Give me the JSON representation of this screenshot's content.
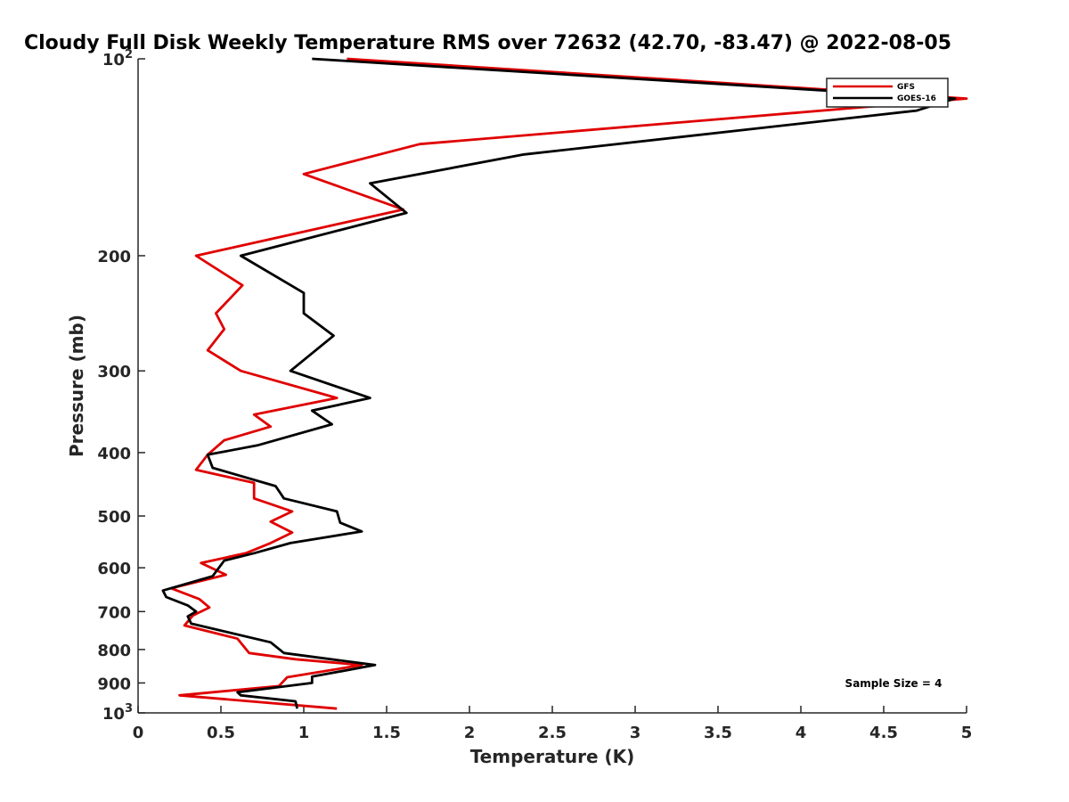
{
  "chart_data": {
    "type": "line",
    "title": "Cloudy Full Disk Weekly Temperature RMS over 72632 (42.70, -83.47) @ 2022-08-05",
    "xlabel": "Temperature (K)",
    "ylabel": "Pressure (mb)",
    "xlim": [
      0,
      5
    ],
    "ylim": [
      100,
      1000
    ],
    "yscale": "log",
    "y_reversed": true,
    "grid": false,
    "legend_position": "top-right",
    "x_ticks": [
      0,
      0.5,
      1,
      1.5,
      2,
      2.5,
      3,
      3.5,
      4,
      4.5,
      5
    ],
    "x_tick_labels": [
      "0",
      "0.5",
      "1",
      "1.5",
      "2",
      "2.5",
      "3",
      "3.5",
      "4",
      "4.5",
      "5"
    ],
    "y_ticks": [
      100,
      200,
      300,
      400,
      500,
      600,
      700,
      800,
      900,
      1000
    ],
    "y_tick_labels": [
      {
        "base": "10",
        "exp": "2"
      },
      {
        "base": "200",
        "exp": ""
      },
      {
        "base": "300",
        "exp": ""
      },
      {
        "base": "400",
        "exp": ""
      },
      {
        "base": "500",
        "exp": ""
      },
      {
        "base": "600",
        "exp": ""
      },
      {
        "base": "700",
        "exp": ""
      },
      {
        "base": "800",
        "exp": ""
      },
      {
        "base": "900",
        "exp": ""
      },
      {
        "base": "10",
        "exp": "3"
      }
    ],
    "annotation": "Sample Size = 4",
    "series": [
      {
        "name": "GFS",
        "color": "#e00000",
        "points": [
          [
            1.26,
            100
          ],
          [
            5.0,
            115
          ],
          [
            1.7,
            135
          ],
          [
            1.0,
            150
          ],
          [
            1.6,
            170
          ],
          [
            0.35,
            200
          ],
          [
            0.63,
            222
          ],
          [
            0.47,
            245
          ],
          [
            0.52,
            259
          ],
          [
            0.42,
            279
          ],
          [
            0.62,
            300
          ],
          [
            1.2,
            330
          ],
          [
            0.7,
            350
          ],
          [
            0.8,
            365
          ],
          [
            0.52,
            383
          ],
          [
            0.42,
            403
          ],
          [
            0.35,
            425
          ],
          [
            0.7,
            445
          ],
          [
            0.7,
            470
          ],
          [
            0.93,
            492
          ],
          [
            0.8,
            510
          ],
          [
            0.93,
            530
          ],
          [
            0.8,
            550
          ],
          [
            0.65,
            570
          ],
          [
            0.38,
            590
          ],
          [
            0.53,
            615
          ],
          [
            0.2,
            645
          ],
          [
            0.37,
            670
          ],
          [
            0.43,
            690
          ],
          [
            0.33,
            710
          ],
          [
            0.28,
            735
          ],
          [
            0.6,
            770
          ],
          [
            0.67,
            810
          ],
          [
            0.95,
            828
          ],
          [
            1.35,
            845
          ],
          [
            0.9,
            882
          ],
          [
            0.85,
            910
          ],
          [
            0.25,
            940
          ],
          [
            1.2,
            985
          ]
        ]
      },
      {
        "name": "GOES-16",
        "color": "#000000",
        "points": [
          [
            1.05,
            100
          ],
          [
            4.93,
            115
          ],
          [
            4.7,
            120
          ],
          [
            2.33,
            140
          ],
          [
            1.4,
            155
          ],
          [
            1.62,
            172
          ],
          [
            0.62,
            200
          ],
          [
            1.0,
            228
          ],
          [
            1.0,
            245
          ],
          [
            1.18,
            265
          ],
          [
            0.92,
            300
          ],
          [
            1.4,
            330
          ],
          [
            1.05,
            345
          ],
          [
            1.17,
            362
          ],
          [
            0.72,
            390
          ],
          [
            0.42,
            403
          ],
          [
            0.45,
            422
          ],
          [
            0.83,
            450
          ],
          [
            0.88,
            470
          ],
          [
            1.2,
            492
          ],
          [
            1.22,
            512
          ],
          [
            1.35,
            528
          ],
          [
            0.92,
            550
          ],
          [
            0.7,
            570
          ],
          [
            0.52,
            585
          ],
          [
            0.45,
            618
          ],
          [
            0.15,
            650
          ],
          [
            0.17,
            665
          ],
          [
            0.3,
            685
          ],
          [
            0.35,
            700
          ],
          [
            0.3,
            712
          ],
          [
            0.32,
            730
          ],
          [
            0.8,
            780
          ],
          [
            0.88,
            810
          ],
          [
            1.43,
            845
          ],
          [
            1.05,
            880
          ],
          [
            1.05,
            900
          ],
          [
            0.6,
            930
          ],
          [
            0.62,
            940
          ],
          [
            0.95,
            960
          ],
          [
            0.96,
            985
          ]
        ]
      }
    ]
  }
}
